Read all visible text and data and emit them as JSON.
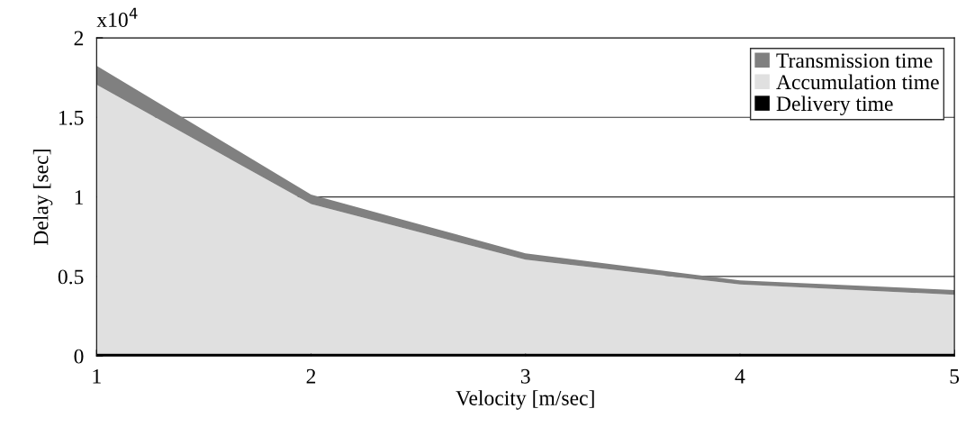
{
  "chart_data": {
    "type": "area",
    "stacked": true,
    "xlabel": "Velocity [m/sec]",
    "ylabel": "Delay [sec]",
    "annotations": [
      "x10$^{4}$"
    ],
    "x": [
      1,
      2,
      3,
      4,
      5
    ],
    "series": [
      {
        "name": "Delivery time",
        "color": "#000000",
        "values": [
          0.015,
          0.015,
          0.015,
          0.015,
          0.015
        ]
      },
      {
        "name": "Accumulation time",
        "color": "#e0e0e0",
        "values": [
          1.69,
          0.94,
          0.59,
          0.435,
          0.37
        ]
      },
      {
        "name": "Transmission time",
        "color": "#808080",
        "values": [
          0.12,
          0.06,
          0.04,
          0.025,
          0.03
        ]
      }
    ],
    "xlim": [
      1,
      5
    ],
    "xticks": [
      1,
      2,
      3,
      4,
      5
    ],
    "ylim": [
      0,
      2
    ],
    "yticks": [
      0,
      0.5,
      1,
      1.5,
      2
    ],
    "grid": "y",
    "legend": "top right"
  }
}
